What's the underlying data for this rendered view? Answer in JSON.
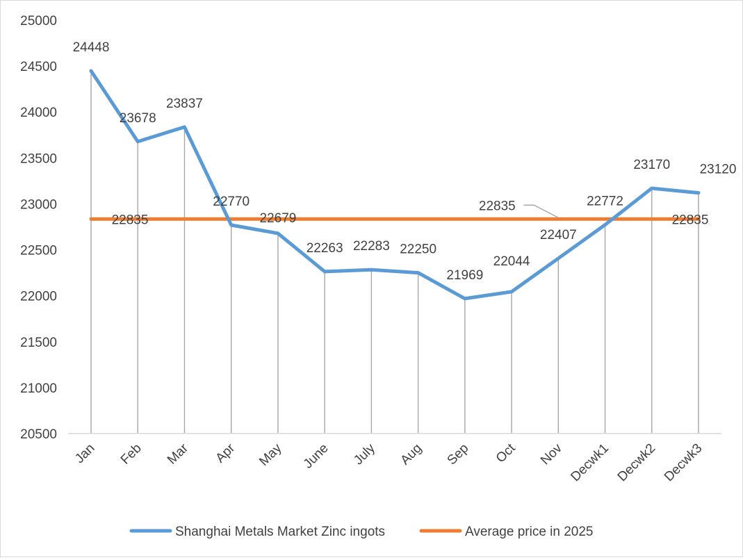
{
  "chart_data": {
    "type": "line",
    "title": "",
    "xlabel": "",
    "ylabel": "",
    "ylim": [
      20500,
      25000
    ],
    "ytick_step": 500,
    "categories": [
      "Jan",
      "Feb",
      "Mar",
      "Apr",
      "May",
      "June",
      "July",
      "Aug",
      "Sep",
      "Oct",
      "Nov",
      "Decwk1",
      "Decwk2",
      "Decwk3"
    ],
    "series": [
      {
        "name": "Shanghai Metals Market Zinc ingots",
        "color": "#5b9bd5",
        "values": [
          24448,
          23678,
          23837,
          22770,
          22679,
          22263,
          22283,
          22250,
          21969,
          22044,
          22407,
          22772,
          23170,
          23120
        ]
      },
      {
        "name": "Average price in 2025",
        "color": "#ed7d31",
        "values": [
          22835,
          22835,
          22835,
          22835,
          22835,
          22835,
          22835,
          22835,
          22835,
          22835,
          22835,
          22835,
          22835,
          22835
        ],
        "labeled_points": [
          0,
          10,
          13
        ]
      }
    ],
    "drop_lines": true,
    "gridlines": false,
    "legend_position": "bottom"
  }
}
